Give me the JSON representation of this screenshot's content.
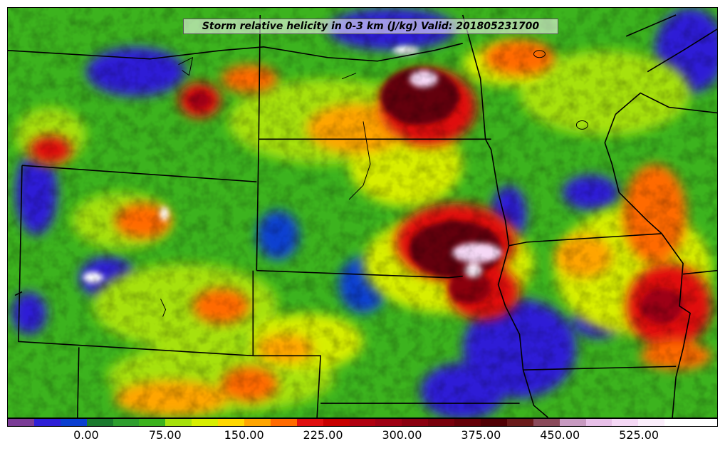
{
  "title": "Storm relative helicity in 0-3 km (J/kg) Valid: 201805231700",
  "colorbar": {
    "labels": [
      "0.00",
      "75.00",
      "150.00",
      "225.00",
      "300.00",
      "375.00",
      "450.00",
      "525.00"
    ],
    "label_values": [
      0,
      75,
      150,
      225,
      300,
      375,
      450,
      525
    ],
    "range": [
      -75,
      600
    ],
    "step": 25,
    "colors": [
      "#7a3b96",
      "#2e1fd6",
      "#0b3fd0",
      "#1a7a2e",
      "#2e9e2e",
      "#3cb31e",
      "#a6e10c",
      "#d7ee00",
      "#ffd800",
      "#ffa500",
      "#ff6a00",
      "#e01010",
      "#c80000",
      "#b00010",
      "#9e0014",
      "#8b0010",
      "#78000c",
      "#640008",
      "#500005",
      "#6a1a1a",
      "#8a4a5a",
      "#c79ac0",
      "#e8c0e8",
      "#f5d8f5",
      "#fbeefb",
      "#ffffff",
      "#ffffff"
    ]
  }
}
